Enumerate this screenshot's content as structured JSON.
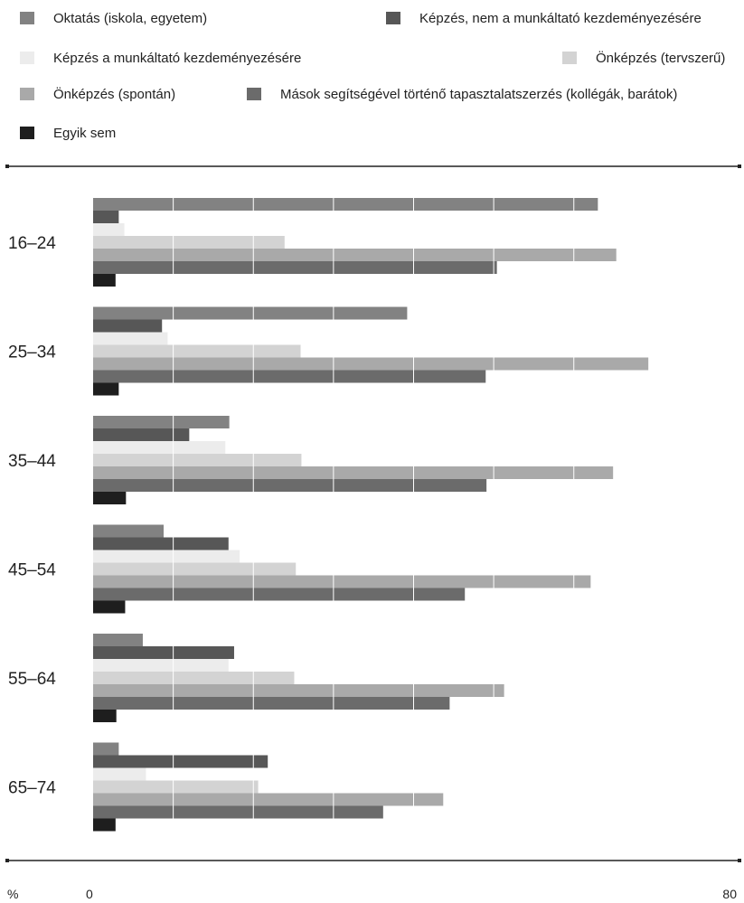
{
  "chart_data": {
    "type": "bar",
    "orientation": "horizontal",
    "unit": "%",
    "xlim": [
      0,
      80
    ],
    "x_tick_labels": [
      "0",
      "80"
    ],
    "grid": true,
    "legend_position": "top",
    "categories": [
      "16–24",
      "25–34",
      "35–44",
      "45–54",
      "55–64",
      "65–74"
    ],
    "series": [
      {
        "name": "Oktatás (iskola, egyetem)",
        "color": "#828282",
        "values": [
          63.0,
          39.2,
          17.0,
          8.8,
          6.2,
          3.2
        ]
      },
      {
        "name": "Képzés, nem a munkáltató kezdeményezésére",
        "color": "#575757",
        "values": [
          3.2,
          8.6,
          12.0,
          16.9,
          17.6,
          21.8
        ]
      },
      {
        "name": "Képzés a munkáltató kezdeményezésére",
        "color": "#ececec",
        "values": [
          3.9,
          9.3,
          16.5,
          18.3,
          16.9,
          6.6
        ]
      },
      {
        "name": "Önképzés (tervszerű)",
        "color": "#d3d3d3",
        "values": [
          23.9,
          25.9,
          26.0,
          25.3,
          25.1,
          20.6
        ]
      },
      {
        "name": "Önképzés (spontán)",
        "color": "#a9a9a9",
        "values": [
          65.3,
          69.3,
          64.9,
          62.1,
          51.3,
          43.7
        ]
      },
      {
        "name": "Mások segítségével történő tapasztalatszerzés (kollégák, barátok)",
        "color": "#6b6b6b",
        "values": [
          50.4,
          49.0,
          49.1,
          46.4,
          44.5,
          36.2
        ]
      },
      {
        "name": "Egyik sem",
        "color": "#1e1e1e",
        "values": [
          2.8,
          3.2,
          4.1,
          4.0,
          2.9,
          2.8
        ]
      }
    ]
  }
}
